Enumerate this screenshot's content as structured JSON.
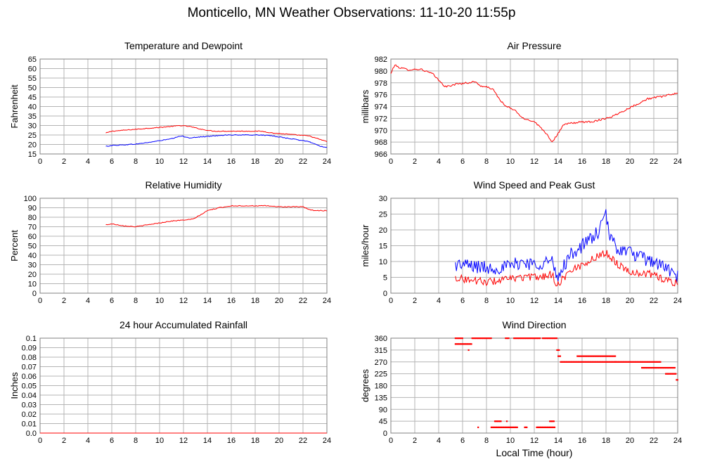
{
  "page": {
    "title": "Monticello, MN Weather Observations: 11-10-20 11:55p",
    "xlabel": "Local Time (hour)"
  },
  "colors": {
    "red": "#ff0000",
    "blue": "#0000ff",
    "grid": "#b4b4b4",
    "frame": "#808080"
  },
  "chart_data": [
    {
      "id": "temp",
      "type": "line",
      "title": "Temperature and Dewpoint",
      "ylabel": "Fahrenheit",
      "xlim": [
        0,
        24
      ],
      "ylim": [
        15,
        65
      ],
      "xticks": [
        0,
        2,
        4,
        6,
        8,
        10,
        12,
        14,
        16,
        18,
        20,
        22,
        24
      ],
      "yticks": [
        15,
        20,
        25,
        30,
        35,
        40,
        45,
        50,
        55,
        60,
        65
      ],
      "grid": true,
      "series": [
        {
          "color": "#ff0000",
          "noise": 0.2,
          "x": [
            5.5,
            6,
            7,
            8,
            9,
            10,
            11,
            11.7,
            12.5,
            13.5,
            14.5,
            15.5,
            16.5,
            17.5,
            18.5,
            19.5,
            20.5,
            21.5,
            22.5,
            23.5,
            24
          ],
          "y": [
            26,
            27,
            27.5,
            28,
            28.5,
            29,
            29.5,
            30,
            29.5,
            28,
            27,
            27,
            27,
            27,
            27,
            26,
            25.5,
            25,
            24.5,
            22.5,
            21.5
          ]
        },
        {
          "color": "#0000ff",
          "noise": 0.2,
          "x": [
            5.5,
            6,
            7,
            8,
            9,
            10,
            11,
            11.8,
            12.5,
            13.5,
            14.5,
            15.5,
            16.5,
            17.5,
            18.5,
            19.5,
            20.5,
            21.5,
            22.5,
            23.5,
            24
          ],
          "y": [
            19,
            19.5,
            19.8,
            20.2,
            21,
            22,
            23,
            24.5,
            23.5,
            24,
            24.5,
            25,
            25,
            25,
            25,
            24.5,
            23.5,
            22.5,
            21.5,
            19,
            18.5
          ]
        }
      ]
    },
    {
      "id": "pressure",
      "type": "line",
      "title": "Air Pressure",
      "ylabel": "millibars",
      "xlim": [
        0,
        24
      ],
      "ylim": [
        966,
        982
      ],
      "xticks": [
        0,
        2,
        4,
        6,
        8,
        10,
        12,
        14,
        16,
        18,
        20,
        22,
        24
      ],
      "yticks": [
        966,
        968,
        970,
        972,
        974,
        976,
        978,
        980,
        982
      ],
      "grid": true,
      "series": [
        {
          "color": "#ff0000",
          "noise": 0.15,
          "x": [
            0,
            0.3,
            0.8,
            1.5,
            2.5,
            3.5,
            4.2,
            4.6,
            5.5,
            6.5,
            7,
            7.5,
            8.5,
            9,
            9.5,
            10.5,
            11,
            12,
            13,
            13.5,
            14,
            14.5,
            15.5,
            17,
            18.5,
            20,
            21.5,
            23,
            24
          ],
          "y": [
            979.5,
            981,
            980.5,
            980.2,
            980.3,
            979.5,
            978,
            977.3,
            977.8,
            978,
            978.2,
            977.5,
            977,
            975.5,
            974.2,
            973.2,
            972,
            971.5,
            969.5,
            968,
            969.5,
            971,
            971.3,
            971.5,
            972.3,
            973.8,
            975.3,
            975.8,
            976.3
          ]
        }
      ]
    },
    {
      "id": "humidity",
      "type": "line",
      "title": "Relative Humidity",
      "ylabel": "Percent",
      "xlim": [
        0,
        24
      ],
      "ylim": [
        0,
        100
      ],
      "xticks": [
        0,
        2,
        4,
        6,
        8,
        10,
        12,
        14,
        16,
        18,
        20,
        22,
        24
      ],
      "yticks": [
        0,
        10,
        20,
        30,
        40,
        50,
        60,
        70,
        80,
        90,
        100
      ],
      "grid": true,
      "series": [
        {
          "color": "#ff0000",
          "noise": 0.4,
          "x": [
            5.5,
            6,
            7,
            8,
            9,
            10,
            11,
            12,
            12.8,
            13.5,
            14,
            15,
            16,
            17,
            18,
            19,
            20,
            21,
            22,
            22.5,
            23,
            24
          ],
          "y": [
            72,
            73,
            71,
            70,
            72,
            74,
            76,
            77,
            78,
            83,
            87,
            90,
            92,
            92,
            92,
            92,
            91,
            91,
            91,
            88,
            87,
            87
          ]
        }
      ]
    },
    {
      "id": "wind",
      "type": "line",
      "title": "Wind Speed and Peak Gust",
      "ylabel": "miles/hour",
      "xlim": [
        0,
        24
      ],
      "ylim": [
        0,
        30
      ],
      "xticks": [
        0,
        2,
        4,
        6,
        8,
        10,
        12,
        14,
        16,
        18,
        20,
        22,
        24
      ],
      "yticks": [
        0,
        5,
        10,
        15,
        20,
        25,
        30
      ],
      "grid": true,
      "series": [
        {
          "color": "#0000ff",
          "noise": 2.2,
          "x": [
            5.4,
            6,
            7,
            8,
            9,
            10,
            11,
            12,
            13,
            13.5,
            13.9,
            14.5,
            15,
            16,
            17,
            17.5,
            18,
            18.3,
            19,
            20,
            21,
            22,
            23,
            24
          ],
          "y": [
            9,
            9,
            8.5,
            8,
            8,
            8.5,
            10,
            9,
            10,
            10,
            4,
            9,
            12,
            15,
            18,
            20,
            25,
            18,
            14,
            13,
            11,
            10,
            8,
            5
          ]
        },
        {
          "color": "#ff0000",
          "noise": 1.2,
          "x": [
            5.4,
            6,
            7,
            8,
            9,
            10,
            11,
            12,
            13,
            13.5,
            13.9,
            14.5,
            15,
            16,
            17,
            18,
            19,
            20,
            21,
            22,
            23,
            24
          ],
          "y": [
            5,
            4.5,
            4,
            3.5,
            4,
            4.5,
            5,
            5,
            5.5,
            6,
            2.5,
            5,
            7,
            9,
            11,
            13,
            9,
            7,
            6,
            6,
            4,
            3
          ]
        }
      ]
    },
    {
      "id": "rain",
      "type": "line",
      "title": "24 hour Accumulated Rainfall",
      "ylabel": "Inches",
      "xlim": [
        0,
        24
      ],
      "ylim": [
        0,
        0.1
      ],
      "xticks": [
        0,
        2,
        4,
        6,
        8,
        10,
        12,
        14,
        16,
        18,
        20,
        22,
        24
      ],
      "yticks": [
        0.0,
        0.01,
        0.02,
        0.03,
        0.04,
        0.05,
        0.06,
        0.07,
        0.08,
        0.09,
        0.1
      ],
      "ytick_labels": [
        "0.0",
        "0.01",
        "0.02",
        "0.03",
        "0.04",
        "0.05",
        "0.06",
        "0.07",
        "0.08",
        "0.09",
        "0.1"
      ],
      "grid": true,
      "series": [
        {
          "color": "#ff0000",
          "noise": 0,
          "x": [
            0,
            24
          ],
          "y": [
            0,
            0
          ]
        }
      ]
    },
    {
      "id": "direction",
      "type": "scatter",
      "title": "Wind Direction",
      "ylabel": "degrees",
      "xlim": [
        0,
        24
      ],
      "ylim": [
        0,
        360
      ],
      "xticks": [
        0,
        2,
        4,
        6,
        8,
        10,
        12,
        14,
        16,
        18,
        20,
        22,
        24
      ],
      "yticks": [
        0,
        45,
        90,
        135,
        180,
        225,
        270,
        315,
        360
      ],
      "grid": true,
      "points_color": "#ff0000",
      "runs": [
        {
          "x0": 5.4,
          "x1": 6.0,
          "y": 360
        },
        {
          "x0": 5.4,
          "x1": 6.8,
          "y": 338
        },
        {
          "x0": 6.5,
          "x1": 6.5,
          "y": 315
        },
        {
          "x0": 6.8,
          "x1": 8.4,
          "y": 360
        },
        {
          "x0": 7.3,
          "x1": 7.3,
          "y": 22
        },
        {
          "x0": 8.4,
          "x1": 10.6,
          "y": 22
        },
        {
          "x0": 8.7,
          "x1": 9.2,
          "y": 45
        },
        {
          "x0": 9.7,
          "x1": 9.7,
          "y": 45
        },
        {
          "x0": 9.6,
          "x1": 9.9,
          "y": 360
        },
        {
          "x0": 10.3,
          "x1": 12.5,
          "y": 360
        },
        {
          "x0": 11.2,
          "x1": 11.4,
          "y": 22
        },
        {
          "x0": 12.2,
          "x1": 13.7,
          "y": 22
        },
        {
          "x0": 13.3,
          "x1": 13.7,
          "y": 45
        },
        {
          "x0": 12.7,
          "x1": 13.9,
          "y": 360
        },
        {
          "x0": 13.9,
          "x1": 14.1,
          "y": 315
        },
        {
          "x0": 14.0,
          "x1": 14.2,
          "y": 292
        },
        {
          "x0": 14.2,
          "x1": 18.8,
          "y": 270
        },
        {
          "x0": 15.6,
          "x1": 18.8,
          "y": 292
        },
        {
          "x0": 18.8,
          "x1": 22.6,
          "y": 270
        },
        {
          "x0": 21.0,
          "x1": 23.8,
          "y": 248
        },
        {
          "x0": 23.0,
          "x1": 23.9,
          "y": 225
        },
        {
          "x0": 23.9,
          "x1": 24.0,
          "y": 202
        }
      ]
    }
  ]
}
